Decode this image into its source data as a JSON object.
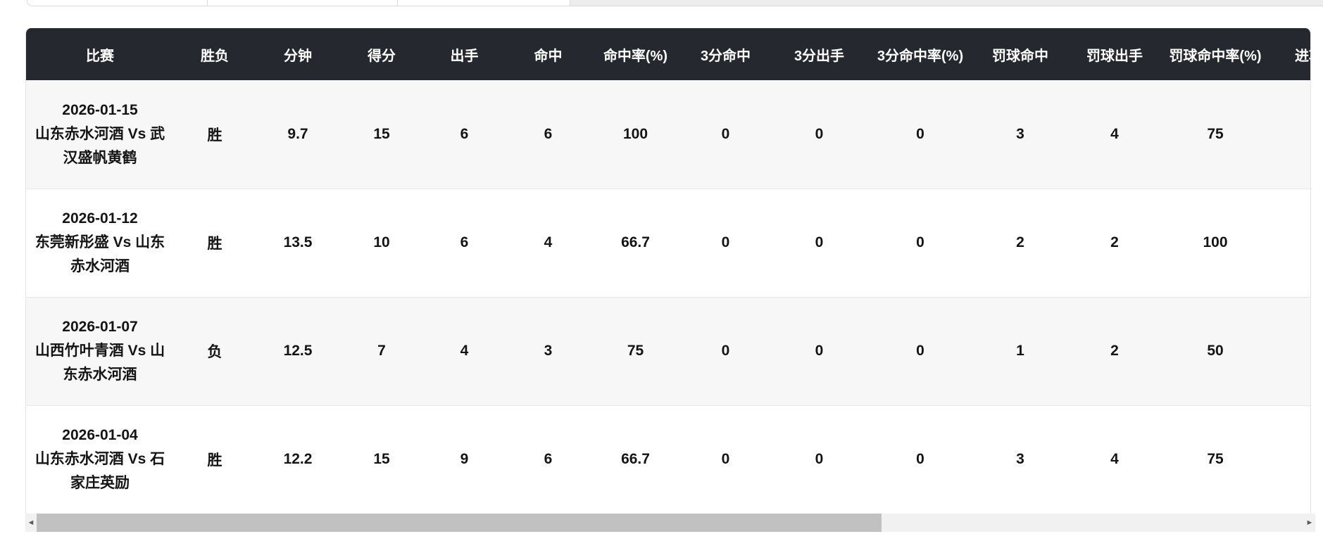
{
  "table": {
    "columns": [
      "比赛",
      "胜负",
      "分钟",
      "得分",
      "出手",
      "命中",
      "命中率(%)",
      "3分命中",
      "3分出手",
      "3分命中率(%)",
      "罚球命中",
      "罚球出手",
      "罚球命中率(%)",
      "进攻"
    ],
    "rows": [
      {
        "date": "2026-01-15",
        "match": "山东赤水河酒 Vs 武汉盛帆黄鹤",
        "result": "胜",
        "stats": [
          "9.7",
          "15",
          "6",
          "6",
          "100",
          "0",
          "0",
          "0",
          "3",
          "4",
          "75",
          ""
        ]
      },
      {
        "date": "2026-01-12",
        "match": "东莞新彤盛 Vs 山东赤水河酒",
        "result": "胜",
        "stats": [
          "13.5",
          "10",
          "6",
          "4",
          "66.7",
          "0",
          "0",
          "0",
          "2",
          "2",
          "100",
          ""
        ]
      },
      {
        "date": "2026-01-07",
        "match": "山西竹叶青酒 Vs 山东赤水河酒",
        "result": "负",
        "stats": [
          "12.5",
          "7",
          "4",
          "3",
          "75",
          "0",
          "0",
          "0",
          "1",
          "2",
          "50",
          ""
        ]
      },
      {
        "date": "2026-01-04",
        "match": "山东赤水河酒 Vs 石家庄英励",
        "result": "胜",
        "stats": [
          "12.2",
          "15",
          "9",
          "6",
          "66.7",
          "0",
          "0",
          "0",
          "3",
          "4",
          "75",
          ""
        ]
      }
    ]
  },
  "scrollbar": {
    "left_arrow": "◄",
    "right_arrow": "►"
  },
  "colors": {
    "header_bg": "#25282e",
    "header_text": "#ffffff",
    "row_stripe": "#f7f7f7",
    "row_white": "#ffffff",
    "divider": "#e8e8e8",
    "body_text": "#141414",
    "scrollbar_track": "#f1f1f1",
    "scrollbar_thumb": "#c1c1c1"
  }
}
